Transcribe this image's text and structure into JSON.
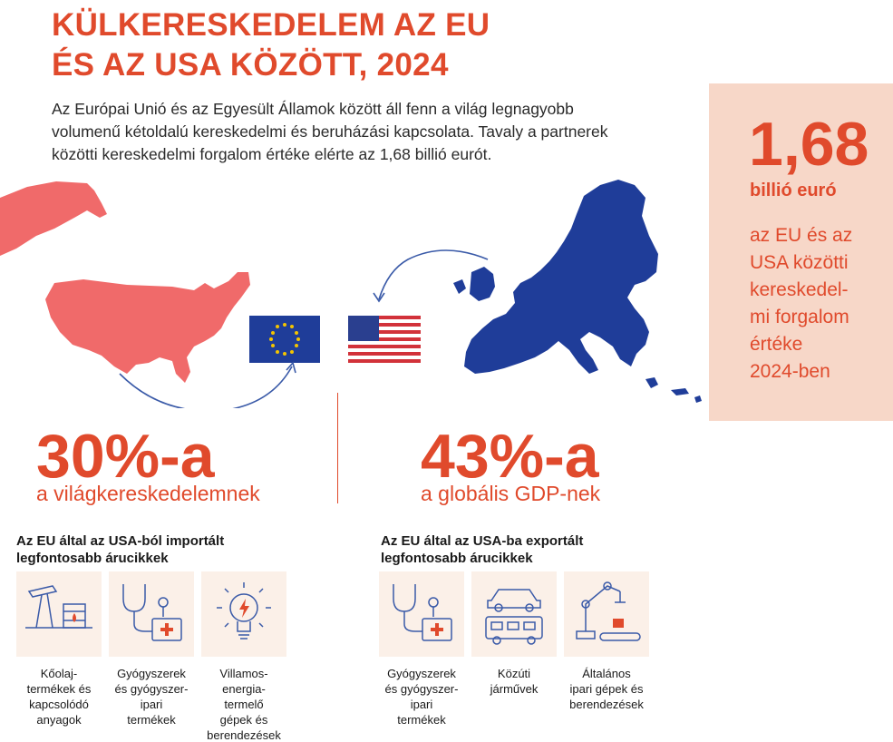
{
  "title": {
    "line1": "KÜLKERESKEDELEM AZ EU",
    "line2": "ÉS AZ USA KÖZÖTT, 2024"
  },
  "intro": {
    "line1": "Az Európai Unió és az Egyesült Államok között áll fenn a világ legnagyobb",
    "line2": "volumenű kétoldalú kereskedelmi és beruházási kapcsolata. Tavaly a partnerek",
    "line3": "közötti kereskedelmi forgalom értéke elérte az 1,68 billió eurót."
  },
  "stat_box": {
    "value": "1,68",
    "unit": "billió euró",
    "desc1": "az EU és az",
    "desc2": "USA közötti",
    "desc3": "kereskedel-",
    "desc4": "mi forgalom",
    "desc5": "értéke",
    "desc6": "2024-ben"
  },
  "share_trade": {
    "value": "30%-a",
    "label": "a világkereskedelemnek"
  },
  "share_gdp": {
    "value": "43%-a",
    "label": "a globális GDP-nek"
  },
  "imports": {
    "title1": "Az EU által az USA-ból importált",
    "title2": "legfontosabb árucikkek",
    "items": [
      {
        "icon": "oil-pump-icon",
        "lines": [
          "Kőolaj-",
          "termékek és",
          "kapcsolódó",
          "anyagok"
        ]
      },
      {
        "icon": "medical-icon",
        "lines": [
          "Gyógyszerek",
          "és gyógyszer-",
          "ipari",
          "termékek"
        ]
      },
      {
        "icon": "lightbulb-icon",
        "lines": [
          "Villamos-",
          "energia-",
          "termelő",
          "gépek és",
          "berendezések"
        ]
      }
    ]
  },
  "exports": {
    "title1": "Az EU által az USA-ba exportált",
    "title2": "legfontosabb árucikkek",
    "items": [
      {
        "icon": "medical-icon",
        "lines": [
          "Gyógyszerek",
          "és gyógyszer-",
          "ipari",
          "termékek"
        ]
      },
      {
        "icon": "vehicles-icon",
        "lines": [
          "Közúti",
          "járművek"
        ]
      },
      {
        "icon": "robot-arm-icon",
        "lines": [
          "Általános",
          "ipari gépek és",
          "berendezések"
        ]
      }
    ]
  },
  "colors": {
    "accent": "#e04a2c",
    "usa_map": "#f06a6a",
    "eu_map": "#1f3d99",
    "box_bg": "#f7d7c8",
    "card_bg": "#fbf0e8"
  }
}
